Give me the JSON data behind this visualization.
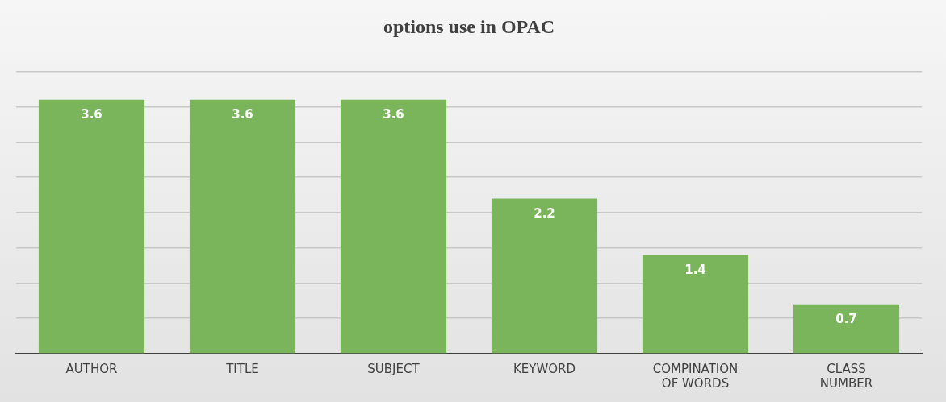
{
  "chart_data": {
    "type": "bar",
    "title": "options use in OPAC",
    "categories": [
      "AUTHOR",
      "TITLE",
      "SUBJECT",
      "KEYWORD",
      "COMPINATION OF WORDS",
      "CLASS NUMBER"
    ],
    "values": [
      3.6,
      3.6,
      3.6,
      2.2,
      1.4,
      0.7
    ],
    "color": "#7ab55c",
    "ylim": [
      0,
      4
    ],
    "yticks": [
      {
        "value": 0,
        "label": null
      },
      {
        "value": 0.5,
        "label": null
      },
      {
        "value": 1,
        "label": null
      },
      {
        "value": 1.5,
        "label": null
      },
      {
        "value": 2,
        "label": null
      },
      {
        "value": 2.5,
        "label": null
      },
      {
        "value": 3,
        "label": null
      },
      {
        "value": 3.5,
        "label": null
      },
      {
        "value": 4,
        "label": null
      }
    ],
    "tick_labels": "x",
    "grid": "y",
    "data_labels": true,
    "legend": false
  }
}
